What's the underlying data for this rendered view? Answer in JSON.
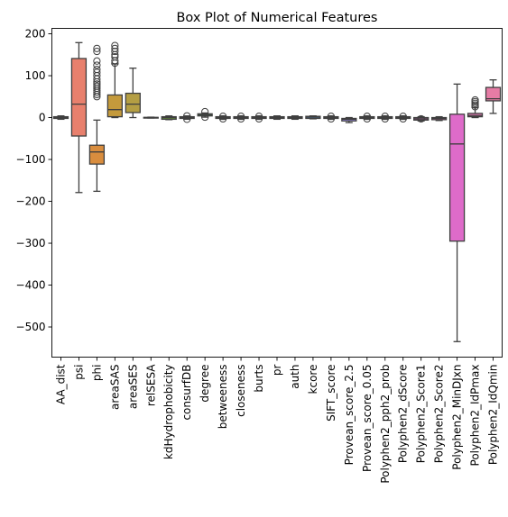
{
  "chart_data": {
    "type": "box",
    "title": "Box Plot of Numerical Features",
    "xlabel": "",
    "ylabel": "",
    "ylim": [
      -572,
      213
    ],
    "yticks": [
      200,
      100,
      0,
      -100,
      -200,
      -300,
      -400,
      -500
    ],
    "ytick_labels": [
      "200",
      "100",
      "0",
      "−100",
      "−200",
      "−300",
      "−400",
      "−500"
    ],
    "categories": [
      "AA_dist",
      "psi",
      "phi",
      "areaSAS",
      "areaSES",
      "relSESA",
      "kdHydrophobicity",
      "consurfDB",
      "degree",
      "betweeness",
      "closeness",
      "burts",
      "pr",
      "auth",
      "kcore",
      "SIFT_score",
      "Provean_score_2.5",
      "Provean_score_0.05",
      "Polyphen2_pph2_prob",
      "Polyphen2_dScore",
      "Polyphen2_Score1",
      "Polyphen2_Score2",
      "Polyphen2_MinDJxn",
      "Polyphen2_IdPmax",
      "Polyphen2_IdQmin"
    ],
    "colors": [
      "#e41a1c",
      "#e8806d",
      "#d98d3e",
      "#c49a3c",
      "#b49e43",
      "#8c9e3e",
      "#6a9e3a",
      "#4aa63c",
      "#41ab5d",
      "#3eae84",
      "#3db0a0",
      "#3cafb5",
      "#3aaec8",
      "#3da8d9",
      "#4fa0e8",
      "#7a95ec",
      "#9a89e6",
      "#b27de8",
      "#c978e6",
      "#db6fd6",
      "#e56cc6",
      "#e86eb7",
      "#de6bc9",
      "#e67bb6",
      "#e67ca5"
    ],
    "boxes": [
      {
        "q1": -2,
        "median": 0,
        "q3": 2,
        "whislo": -4,
        "whishi": 4,
        "fliers": []
      },
      {
        "q1": -44,
        "median": 32,
        "q3": 141,
        "whislo": -179,
        "whishi": 179,
        "fliers": []
      },
      {
        "q1": -111,
        "median": -82,
        "q3": -66,
        "whislo": -176,
        "whishi": -6,
        "fliers": [
          50,
          55,
          60,
          65,
          70,
          75,
          80,
          85,
          92,
          100,
          108,
          115,
          125,
          135,
          158,
          165
        ]
      },
      {
        "q1": 2,
        "median": 19,
        "q3": 54,
        "whislo": 0,
        "whishi": 128,
        "fliers": [
          130,
          136,
          145,
          150,
          158,
          165,
          172
        ]
      },
      {
        "q1": 12,
        "median": 32,
        "q3": 58,
        "whislo": 0,
        "whishi": 118,
        "fliers": []
      },
      {
        "q1": -0.5,
        "median": 0,
        "q3": 0.5,
        "whislo": -1,
        "whishi": 1,
        "fliers": []
      },
      {
        "q1": -4,
        "median": 0,
        "q3": 2,
        "whislo": -5,
        "whishi": 4,
        "fliers": []
      },
      {
        "q1": -2,
        "median": 0,
        "q3": 2,
        "whislo": -4,
        "whishi": 4,
        "fliers": [
          -4,
          4
        ]
      },
      {
        "q1": 4,
        "median": 7,
        "q3": 9,
        "whislo": 1,
        "whishi": 11,
        "fliers": [
          1,
          14
        ]
      },
      {
        "q1": -2,
        "median": 0,
        "q3": 2,
        "whislo": -4,
        "whishi": 4,
        "fliers": [
          -3,
          3
        ]
      },
      {
        "q1": -2,
        "median": 0,
        "q3": 2,
        "whislo": -4,
        "whishi": 4,
        "fliers": [
          -3,
          3
        ]
      },
      {
        "q1": -2,
        "median": 0,
        "q3": 2,
        "whislo": -4,
        "whishi": 4,
        "fliers": [
          -3,
          3
        ]
      },
      {
        "q1": -2,
        "median": 0,
        "q3": 2,
        "whislo": -4,
        "whishi": 4,
        "fliers": []
      },
      {
        "q1": -2,
        "median": 0,
        "q3": 2,
        "whislo": -4,
        "whishi": 4,
        "fliers": []
      },
      {
        "q1": -2,
        "median": 1,
        "q3": 3,
        "whislo": -3,
        "whishi": 4,
        "fliers": []
      },
      {
        "q1": -2,
        "median": 0,
        "q3": 2,
        "whislo": -4,
        "whishi": 4,
        "fliers": [
          -3,
          3
        ]
      },
      {
        "q1": -8,
        "median": -4,
        "q3": -2,
        "whislo": -12,
        "whishi": 0,
        "fliers": []
      },
      {
        "q1": -2,
        "median": 0,
        "q3": 2,
        "whislo": -4,
        "whishi": 4,
        "fliers": [
          -3,
          3
        ]
      },
      {
        "q1": -2,
        "median": 0,
        "q3": 2,
        "whislo": -4,
        "whishi": 4,
        "fliers": [
          -3,
          3
        ]
      },
      {
        "q1": -2,
        "median": 0,
        "q3": 2,
        "whislo": -4,
        "whishi": 4,
        "fliers": [
          -3,
          3
        ]
      },
      {
        "q1": -6,
        "median": -3,
        "q3": 0,
        "whislo": -8,
        "whishi": 2,
        "fliers": [
          -3
        ]
      },
      {
        "q1": -5,
        "median": -2,
        "q3": 0,
        "whislo": -7,
        "whishi": 2,
        "fliers": []
      },
      {
        "q1": -295,
        "median": -63,
        "q3": 8,
        "whislo": -535,
        "whishi": 80,
        "fliers": []
      },
      {
        "q1": 2,
        "median": 5,
        "q3": 10,
        "whislo": 0,
        "whishi": 24,
        "fliers": [
          26,
          30,
          34,
          38,
          42
        ]
      },
      {
        "q1": 40,
        "median": 45,
        "q3": 72,
        "whislo": 10,
        "whishi": 90,
        "fliers": []
      }
    ]
  }
}
